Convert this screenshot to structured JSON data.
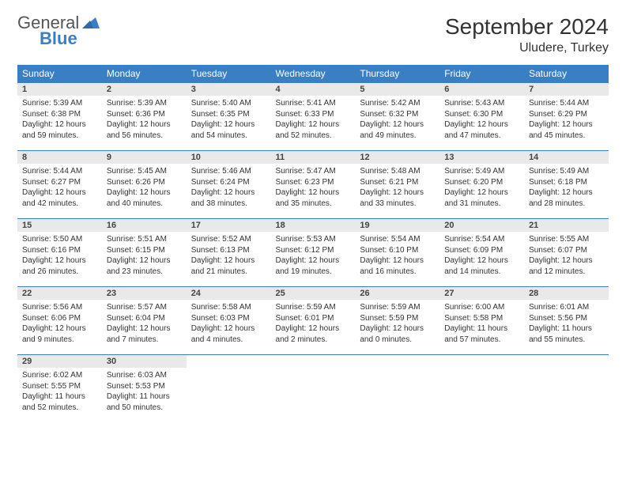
{
  "brand": {
    "general": "General",
    "blue": "Blue"
  },
  "title": "September 2024",
  "location": "Uludere, Turkey",
  "colors": {
    "accent": "#3a7fc4",
    "header_bg": "#3a7fc4",
    "daynum_bg": "#e9e9e9",
    "text": "#333333"
  },
  "weekdays": [
    "Sunday",
    "Monday",
    "Tuesday",
    "Wednesday",
    "Thursday",
    "Friday",
    "Saturday"
  ],
  "weeks": [
    [
      {
        "n": "1",
        "sr": "Sunrise: 5:39 AM",
        "ss": "Sunset: 6:38 PM",
        "d1": "Daylight: 12 hours",
        "d2": "and 59 minutes."
      },
      {
        "n": "2",
        "sr": "Sunrise: 5:39 AM",
        "ss": "Sunset: 6:36 PM",
        "d1": "Daylight: 12 hours",
        "d2": "and 56 minutes."
      },
      {
        "n": "3",
        "sr": "Sunrise: 5:40 AM",
        "ss": "Sunset: 6:35 PM",
        "d1": "Daylight: 12 hours",
        "d2": "and 54 minutes."
      },
      {
        "n": "4",
        "sr": "Sunrise: 5:41 AM",
        "ss": "Sunset: 6:33 PM",
        "d1": "Daylight: 12 hours",
        "d2": "and 52 minutes."
      },
      {
        "n": "5",
        "sr": "Sunrise: 5:42 AM",
        "ss": "Sunset: 6:32 PM",
        "d1": "Daylight: 12 hours",
        "d2": "and 49 minutes."
      },
      {
        "n": "6",
        "sr": "Sunrise: 5:43 AM",
        "ss": "Sunset: 6:30 PM",
        "d1": "Daylight: 12 hours",
        "d2": "and 47 minutes."
      },
      {
        "n": "7",
        "sr": "Sunrise: 5:44 AM",
        "ss": "Sunset: 6:29 PM",
        "d1": "Daylight: 12 hours",
        "d2": "and 45 minutes."
      }
    ],
    [
      {
        "n": "8",
        "sr": "Sunrise: 5:44 AM",
        "ss": "Sunset: 6:27 PM",
        "d1": "Daylight: 12 hours",
        "d2": "and 42 minutes."
      },
      {
        "n": "9",
        "sr": "Sunrise: 5:45 AM",
        "ss": "Sunset: 6:26 PM",
        "d1": "Daylight: 12 hours",
        "d2": "and 40 minutes."
      },
      {
        "n": "10",
        "sr": "Sunrise: 5:46 AM",
        "ss": "Sunset: 6:24 PM",
        "d1": "Daylight: 12 hours",
        "d2": "and 38 minutes."
      },
      {
        "n": "11",
        "sr": "Sunrise: 5:47 AM",
        "ss": "Sunset: 6:23 PM",
        "d1": "Daylight: 12 hours",
        "d2": "and 35 minutes."
      },
      {
        "n": "12",
        "sr": "Sunrise: 5:48 AM",
        "ss": "Sunset: 6:21 PM",
        "d1": "Daylight: 12 hours",
        "d2": "and 33 minutes."
      },
      {
        "n": "13",
        "sr": "Sunrise: 5:49 AM",
        "ss": "Sunset: 6:20 PM",
        "d1": "Daylight: 12 hours",
        "d2": "and 31 minutes."
      },
      {
        "n": "14",
        "sr": "Sunrise: 5:49 AM",
        "ss": "Sunset: 6:18 PM",
        "d1": "Daylight: 12 hours",
        "d2": "and 28 minutes."
      }
    ],
    [
      {
        "n": "15",
        "sr": "Sunrise: 5:50 AM",
        "ss": "Sunset: 6:16 PM",
        "d1": "Daylight: 12 hours",
        "d2": "and 26 minutes."
      },
      {
        "n": "16",
        "sr": "Sunrise: 5:51 AM",
        "ss": "Sunset: 6:15 PM",
        "d1": "Daylight: 12 hours",
        "d2": "and 23 minutes."
      },
      {
        "n": "17",
        "sr": "Sunrise: 5:52 AM",
        "ss": "Sunset: 6:13 PM",
        "d1": "Daylight: 12 hours",
        "d2": "and 21 minutes."
      },
      {
        "n": "18",
        "sr": "Sunrise: 5:53 AM",
        "ss": "Sunset: 6:12 PM",
        "d1": "Daylight: 12 hours",
        "d2": "and 19 minutes."
      },
      {
        "n": "19",
        "sr": "Sunrise: 5:54 AM",
        "ss": "Sunset: 6:10 PM",
        "d1": "Daylight: 12 hours",
        "d2": "and 16 minutes."
      },
      {
        "n": "20",
        "sr": "Sunrise: 5:54 AM",
        "ss": "Sunset: 6:09 PM",
        "d1": "Daylight: 12 hours",
        "d2": "and 14 minutes."
      },
      {
        "n": "21",
        "sr": "Sunrise: 5:55 AM",
        "ss": "Sunset: 6:07 PM",
        "d1": "Daylight: 12 hours",
        "d2": "and 12 minutes."
      }
    ],
    [
      {
        "n": "22",
        "sr": "Sunrise: 5:56 AM",
        "ss": "Sunset: 6:06 PM",
        "d1": "Daylight: 12 hours",
        "d2": "and 9 minutes."
      },
      {
        "n": "23",
        "sr": "Sunrise: 5:57 AM",
        "ss": "Sunset: 6:04 PM",
        "d1": "Daylight: 12 hours",
        "d2": "and 7 minutes."
      },
      {
        "n": "24",
        "sr": "Sunrise: 5:58 AM",
        "ss": "Sunset: 6:03 PM",
        "d1": "Daylight: 12 hours",
        "d2": "and 4 minutes."
      },
      {
        "n": "25",
        "sr": "Sunrise: 5:59 AM",
        "ss": "Sunset: 6:01 PM",
        "d1": "Daylight: 12 hours",
        "d2": "and 2 minutes."
      },
      {
        "n": "26",
        "sr": "Sunrise: 5:59 AM",
        "ss": "Sunset: 5:59 PM",
        "d1": "Daylight: 12 hours",
        "d2": "and 0 minutes."
      },
      {
        "n": "27",
        "sr": "Sunrise: 6:00 AM",
        "ss": "Sunset: 5:58 PM",
        "d1": "Daylight: 11 hours",
        "d2": "and 57 minutes."
      },
      {
        "n": "28",
        "sr": "Sunrise: 6:01 AM",
        "ss": "Sunset: 5:56 PM",
        "d1": "Daylight: 11 hours",
        "d2": "and 55 minutes."
      }
    ],
    [
      {
        "n": "29",
        "sr": "Sunrise: 6:02 AM",
        "ss": "Sunset: 5:55 PM",
        "d1": "Daylight: 11 hours",
        "d2": "and 52 minutes."
      },
      {
        "n": "30",
        "sr": "Sunrise: 6:03 AM",
        "ss": "Sunset: 5:53 PM",
        "d1": "Daylight: 11 hours",
        "d2": "and 50 minutes."
      },
      null,
      null,
      null,
      null,
      null
    ]
  ]
}
